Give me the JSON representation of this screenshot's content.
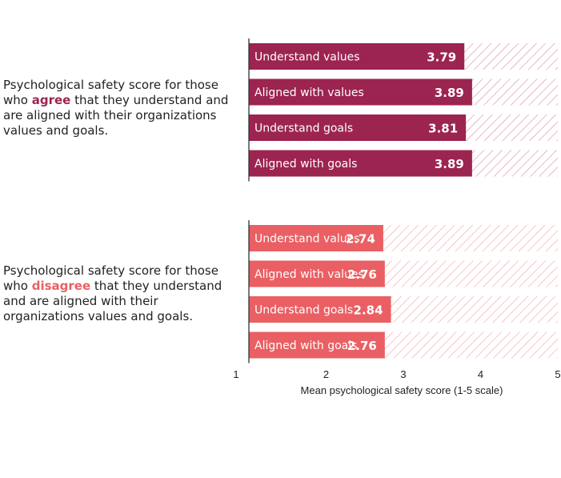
{
  "chart_data": {
    "type": "bar",
    "orientation": "horizontal",
    "xlabel": "Mean psychological safety score (1-5 scale)",
    "xlim": [
      1,
      5
    ],
    "xticks": [
      1,
      2,
      3,
      4,
      5
    ],
    "grid": false,
    "groups": [
      {
        "label_pre": "Psychological safety score for those who ",
        "keyword": "agree",
        "label_post": " that they understand and are aligned with their organizations values and goals.",
        "color": "#9c2451",
        "categories": [
          "Understand values",
          "Aligned with values",
          "Understand goals",
          "Aligned with goals"
        ],
        "values": [
          3.79,
          3.89,
          3.81,
          3.89
        ]
      },
      {
        "label_pre": "Psychological safety score for those who ",
        "keyword": "disagree",
        "label_post": " that they understand and are aligned with their organizations values and goals.",
        "color": "#ea5f63",
        "categories": [
          "Understand values",
          "Aligned with values",
          "Understand goals",
          "Aligned with goals"
        ],
        "values": [
          2.74,
          2.76,
          2.84,
          2.76
        ]
      }
    ]
  }
}
